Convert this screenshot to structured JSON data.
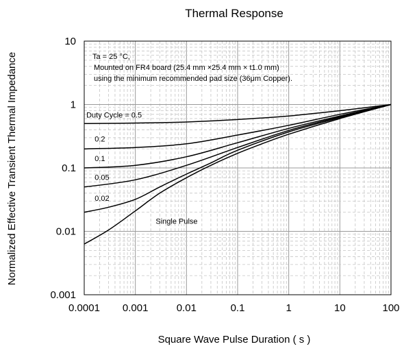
{
  "chart_data": {
    "type": "line",
    "title": "Thermal Response",
    "xlabel": "Square Wave Pulse Duration ( s )",
    "ylabel": "Normalized Effective Transient Thermal Impedance",
    "x_scale": "log",
    "y_scale": "log",
    "xlim": [
      0.0001,
      100
    ],
    "ylim": [
      0.001,
      10
    ],
    "x_ticks": [
      "0.0001",
      "0.001",
      "0.01",
      "0.1",
      "1",
      "10",
      "100"
    ],
    "y_ticks": [
      "10",
      "1",
      "0.1",
      "0.01",
      "0.001"
    ],
    "grid": true,
    "annotations": [
      "Ta = 25 °C,",
      "Mounted on FR4 board  (25.4 mm ×25.4 mm × t1.0 mm)",
      "using the minimum recommended pad size (36μm Copper)."
    ],
    "series": [
      {
        "name": "Duty Cycle = 0.5",
        "x": [
          0.0001,
          0.001,
          0.01,
          0.1,
          1,
          10,
          100
        ],
        "y": [
          0.5,
          0.51,
          0.53,
          0.58,
          0.66,
          0.8,
          1.0
        ]
      },
      {
        "name": "0.2",
        "x": [
          0.0001,
          0.001,
          0.01,
          0.1,
          1,
          10,
          100
        ],
        "y": [
          0.2,
          0.21,
          0.24,
          0.33,
          0.47,
          0.7,
          1.0
        ]
      },
      {
        "name": "0.1",
        "x": [
          0.0001,
          0.001,
          0.01,
          0.1,
          1,
          10,
          100
        ],
        "y": [
          0.1,
          0.11,
          0.15,
          0.25,
          0.42,
          0.66,
          1.0
        ]
      },
      {
        "name": "0.05",
        "x": [
          0.0001,
          0.001,
          0.01,
          0.1,
          1,
          10,
          100
        ],
        "y": [
          0.05,
          0.065,
          0.11,
          0.21,
          0.39,
          0.64,
          1.0
        ]
      },
      {
        "name": "0.02",
        "x": [
          0.0001,
          0.0003,
          0.001,
          0.003,
          0.01,
          0.03,
          0.1,
          1,
          10,
          100
        ],
        "y": [
          0.02,
          0.024,
          0.032,
          0.05,
          0.08,
          0.12,
          0.19,
          0.37,
          0.62,
          1.0
        ]
      },
      {
        "name": "Single Pulse",
        "x": [
          0.0001,
          0.0003,
          0.001,
          0.003,
          0.01,
          0.03,
          0.1,
          0.3,
          1,
          10,
          100
        ],
        "y": [
          0.0063,
          0.0105,
          0.021,
          0.04,
          0.07,
          0.11,
          0.17,
          0.24,
          0.34,
          0.6,
          1.0
        ]
      }
    ]
  }
}
